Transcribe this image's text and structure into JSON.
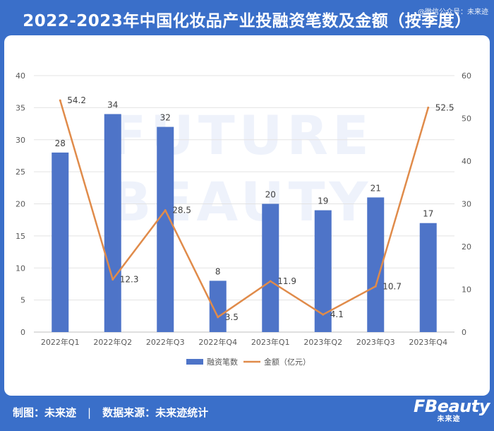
{
  "header": {
    "title": "2022-2023年中国化妆品产业投融资笔数及金额（按季度）",
    "wechat": "@微信公众号：未来迹"
  },
  "watermark": {
    "line1": "FUTURE",
    "line2": "BEAUTY"
  },
  "footer": {
    "maker": "制图：未来迹",
    "separator": "|",
    "source": "数据来源：未来迹统计"
  },
  "logo": {
    "main": "FBeauty",
    "sub": "未来迹"
  },
  "colors": {
    "background": "#3a6fc9",
    "bar": "#4e74c8",
    "line": "#e08b4a",
    "watermark": "#eef2fb"
  },
  "chart_data": {
    "type": "bar",
    "categories": [
      "2022年Q1",
      "2022年Q2",
      "2022年Q3",
      "2022年Q4",
      "2023年Q1",
      "2023年Q2",
      "2023年Q3",
      "2023年Q4"
    ],
    "series": [
      {
        "name": "融资笔数",
        "type": "bar",
        "axis": "left",
        "values": [
          28,
          34,
          32,
          8,
          20,
          19,
          21,
          17
        ],
        "labels": [
          "28",
          "34",
          "32",
          "8",
          "20",
          "19",
          "21",
          "17"
        ]
      },
      {
        "name": "金额（亿元）",
        "type": "line",
        "axis": "right",
        "values": [
          54.2,
          12.3,
          28.5,
          3.5,
          11.9,
          4.1,
          10.7,
          52.5
        ],
        "labels": [
          "54.2",
          "12.3",
          "28.5",
          "3.5",
          "11.9",
          "4.1",
          "10.7",
          "52.5"
        ]
      }
    ],
    "yleft": {
      "min": 0,
      "max": 40,
      "ticks": [
        "0",
        "5",
        "10",
        "15",
        "20",
        "25",
        "30",
        "35",
        "40"
      ]
    },
    "yright": {
      "min": 0,
      "max": 60,
      "ticks": [
        "0",
        "10",
        "20",
        "30",
        "40",
        "50",
        "60"
      ]
    },
    "grid": true,
    "legend_position": "bottom"
  }
}
